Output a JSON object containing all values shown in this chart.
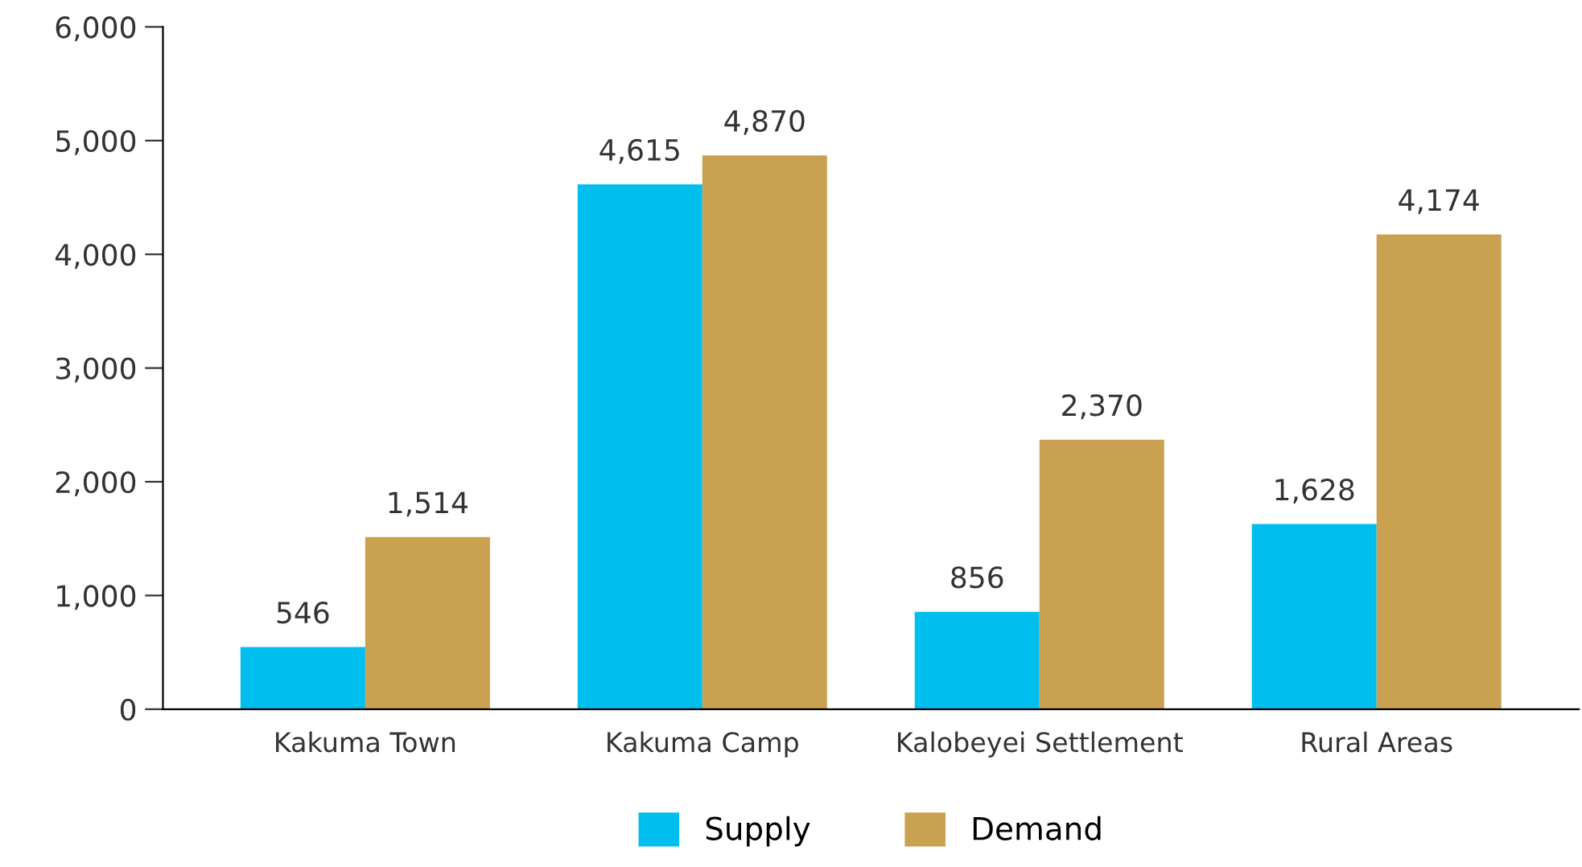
{
  "chart_data": {
    "type": "bar",
    "categories": [
      "Kakuma Town",
      "Kakuma Camp",
      "Kalobeyei Settlement",
      "Rural Areas"
    ],
    "series": [
      {
        "name": "Supply",
        "color": "#00bfee",
        "values": [
          546,
          4615,
          856,
          1628
        ],
        "value_labels": [
          "546",
          "4,615",
          "856",
          "1,628"
        ]
      },
      {
        "name": "Demand",
        "color": "#c9a151",
        "values": [
          1514,
          4870,
          2370,
          4174
        ],
        "value_labels": [
          "1,514",
          "4,870",
          "2,370",
          "4,174"
        ]
      }
    ],
    "ylim": [
      0,
      6000
    ],
    "yticks": [
      0,
      {
        "value": 1000,
        "label": "1,000"
      },
      {
        "value": 2000,
        "label": "2,000"
      },
      {
        "value": 3000,
        "label": "3,000"
      },
      {
        "value": 4000,
        "label": "4,000"
      },
      {
        "value": 5000,
        "label": "5,000"
      },
      {
        "value": 6000,
        "label": "6,000"
      }
    ],
    "grid": false,
    "legend": "bottom"
  }
}
